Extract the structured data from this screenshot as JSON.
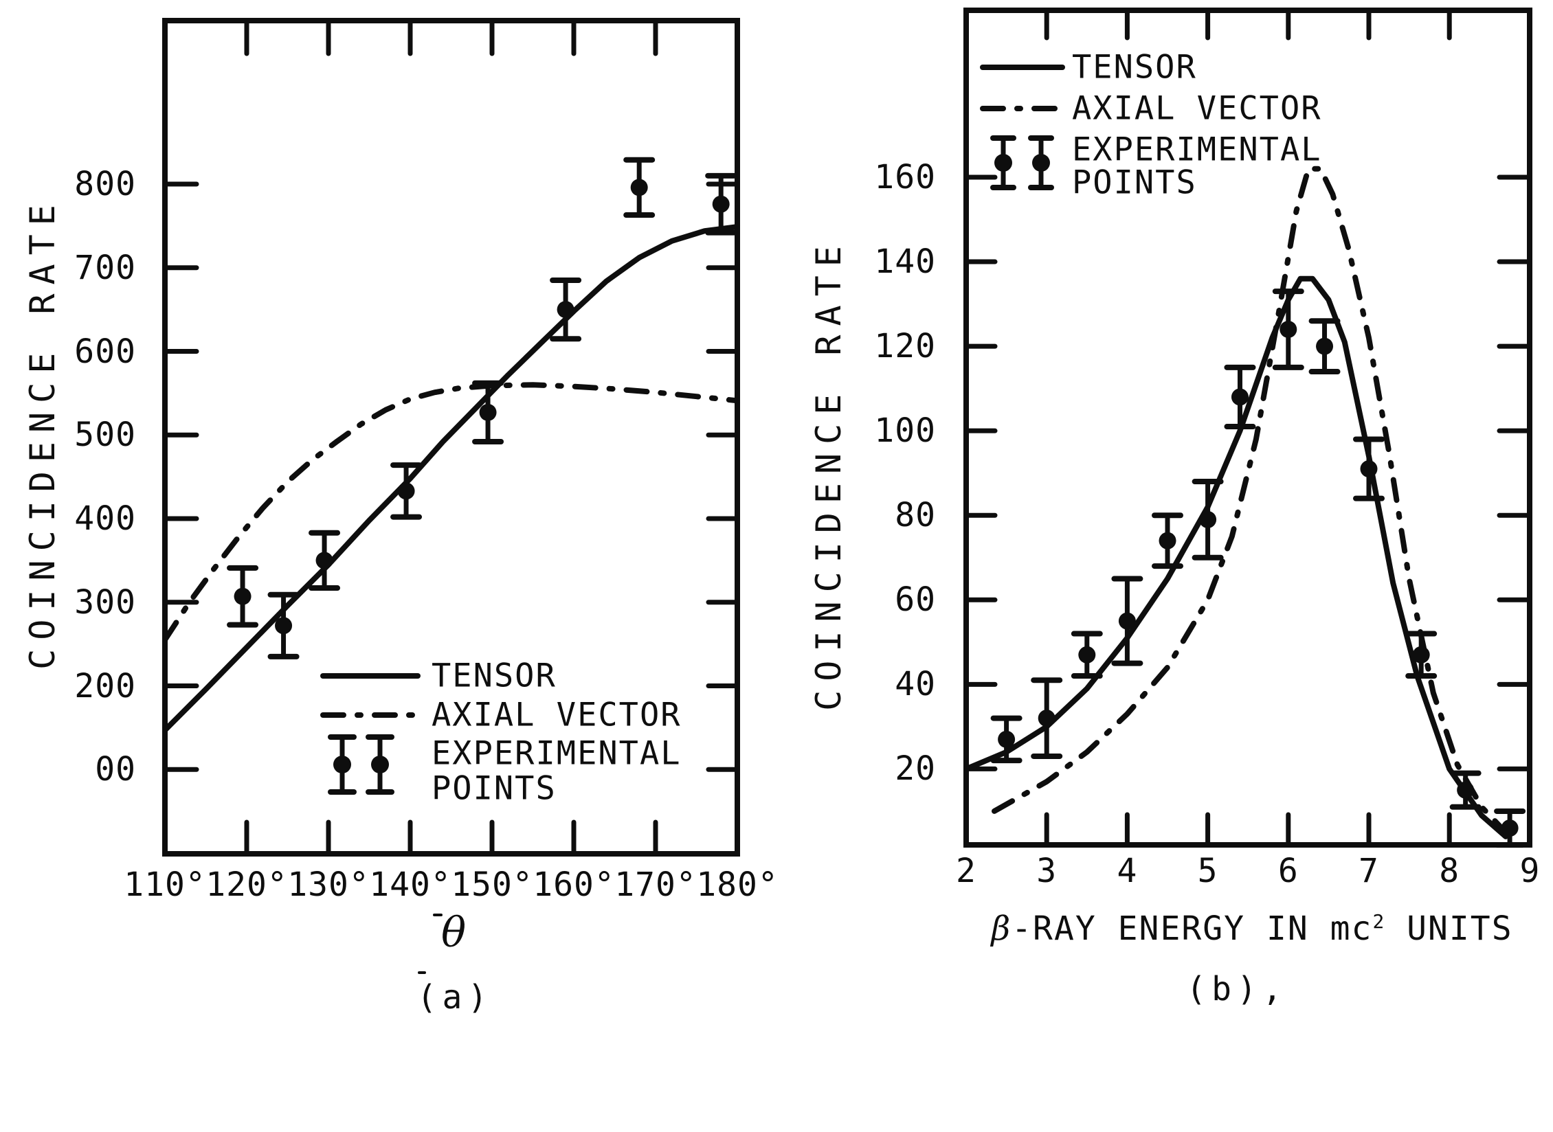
{
  "figure": {
    "background": "#ffffff",
    "ink": "#0e0e0e"
  },
  "panel_a": {
    "ylabel": "COINCIDENCE RATE",
    "xlabel": "θ",
    "caption": "(a)",
    "legend": {
      "tensor": "TENSOR",
      "axial": "AXIAL VECTOR",
      "experimental_line1": "EXPERIMENTAL",
      "experimental_line2": "POINTS"
    }
  },
  "panel_b": {
    "ylabel": "COINCIDENCE RATE",
    "xlabel_beta": "β",
    "xlabel_prefix": "-RAY ENERGY IN mc",
    "xlabel_sup": "2",
    "xlabel_suffix": " UNITS",
    "caption": "(b),",
    "legend": {
      "tensor": "TENSOR",
      "axial": "AXIAL VECTOR",
      "experimental_line1": "EXPERIMENTAL",
      "experimental_line2": "POINTS"
    }
  },
  "chart_data": [
    {
      "type": "line",
      "panel": "a",
      "title": "",
      "xlabel": "θ",
      "ylabel": "COINCIDENCE RATE",
      "xlim": [
        110,
        180
      ],
      "ylim": [
        0,
        1000
      ],
      "grid": false,
      "legend_position": "inside lower right",
      "x_tick_labels": [
        {
          "v": 110,
          "label": "110°"
        },
        {
          "v": 120,
          "label": "120°"
        },
        {
          "v": 130,
          "label": "130°"
        },
        {
          "v": 140,
          "label": "140°"
        },
        {
          "v": 150,
          "label": "150°"
        },
        {
          "v": 160,
          "label": "160°"
        },
        {
          "v": 170,
          "label": "170°"
        },
        {
          "v": 180,
          "label": "180°"
        }
      ],
      "x_tick_marks": [
        120,
        130,
        140,
        150,
        160,
        170
      ],
      "y_tick_labels": [
        {
          "v": 800,
          "label": "800"
        },
        {
          "v": 700,
          "label": "700"
        },
        {
          "v": 600,
          "label": "600"
        },
        {
          "v": 500,
          "label": "500"
        },
        {
          "v": 400,
          "label": "400"
        },
        {
          "v": 300,
          "label": "300"
        },
        {
          "v": 200,
          "label": "200"
        },
        {
          "v": 100,
          "label": "00"
        }
      ],
      "series": [
        {
          "name": "TENSOR",
          "style": "solid",
          "points": [
            [
              110,
              147
            ],
            [
              115,
              196
            ],
            [
              120,
              246
            ],
            [
              125,
              296
            ],
            [
              130,
              345
            ],
            [
              135,
              398
            ],
            [
              140,
              448
            ],
            [
              144,
              492
            ],
            [
              148,
              532
            ],
            [
              152,
              572
            ],
            [
              156,
              610
            ],
            [
              160,
              648
            ],
            [
              164,
              684
            ],
            [
              168,
              712
            ],
            [
              172,
              732
            ],
            [
              176,
              744
            ],
            [
              180,
              749
            ]
          ]
        },
        {
          "name": "AXIAL VECTOR",
          "style": "dashdot",
          "points": [
            [
              110,
              255
            ],
            [
              113,
              300
            ],
            [
              116,
              340
            ],
            [
              119,
              378
            ],
            [
              122,
              413
            ],
            [
              125,
              444
            ],
            [
              128,
              470
            ],
            [
              131,
              492
            ],
            [
              134,
              513
            ],
            [
              137,
              530
            ],
            [
              140,
              543
            ],
            [
              143,
              551
            ],
            [
              146,
              556
            ],
            [
              150,
              559
            ],
            [
              155,
              560
            ],
            [
              160,
              558
            ],
            [
              165,
              555
            ],
            [
              170,
              551
            ],
            [
              175,
              546
            ],
            [
              180,
              541
            ]
          ]
        },
        {
          "name": "EXPERIMENTAL POINTS",
          "style": "scatter",
          "points": [
            {
              "x": 119.5,
              "y": 307,
              "err": 34
            },
            {
              "x": 124.5,
              "y": 272,
              "err": 37
            },
            {
              "x": 129.5,
              "y": 350,
              "err": 33
            },
            {
              "x": 139.5,
              "y": 433,
              "err": 31
            },
            {
              "x": 149.5,
              "y": 527,
              "err": 35
            },
            {
              "x": 159.0,
              "y": 650,
              "err": 35
            },
            {
              "x": 168.0,
              "y": 796,
              "err": 33
            },
            {
              "x": 178.0,
              "y": 776,
              "err": 34
            }
          ]
        }
      ]
    },
    {
      "type": "line",
      "panel": "b",
      "title": "",
      "xlabel": "β-RAY ENERGY IN mc2 UNITS",
      "ylabel": "COINCIDENCE RATE",
      "xlim": [
        2,
        9
      ],
      "ylim": [
        0,
        175
      ],
      "grid": false,
      "legend_position": "inside upper left",
      "x_tick_labels": [
        {
          "v": 2,
          "label": "2"
        },
        {
          "v": 3,
          "label": "3"
        },
        {
          "v": 4,
          "label": "4"
        },
        {
          "v": 5,
          "label": "5"
        },
        {
          "v": 6,
          "label": "6"
        },
        {
          "v": 7,
          "label": "7"
        },
        {
          "v": 8,
          "label": "8"
        },
        {
          "v": 9,
          "label": "9"
        }
      ],
      "x_tick_marks": [
        3,
        4,
        5,
        6,
        7,
        8
      ],
      "y_tick_labels": [
        {
          "v": 160,
          "label": "160"
        },
        {
          "v": 140,
          "label": "140"
        },
        {
          "v": 120,
          "label": "120"
        },
        {
          "v": 100,
          "label": "100"
        },
        {
          "v": 80,
          "label": "80"
        },
        {
          "v": 60,
          "label": "60"
        },
        {
          "v": 40,
          "label": "40"
        },
        {
          "v": 20,
          "label": "20"
        }
      ],
      "series": [
        {
          "name": "TENSOR",
          "style": "solid",
          "points": [
            [
              2,
              20
            ],
            [
              2.5,
              24
            ],
            [
              3,
              30
            ],
            [
              3.5,
              39
            ],
            [
              4,
              51
            ],
            [
              4.5,
              65
            ],
            [
              5,
              82
            ],
            [
              5.4,
              100
            ],
            [
              5.8,
              122
            ],
            [
              6.0,
              131
            ],
            [
              6.15,
              136
            ],
            [
              6.3,
              136
            ],
            [
              6.5,
              131
            ],
            [
              6.7,
              121
            ],
            [
              7,
              94
            ],
            [
              7.3,
              64
            ],
            [
              7.6,
              42
            ],
            [
              8,
              20
            ],
            [
              8.4,
              9
            ],
            [
              8.7,
              4
            ]
          ]
        },
        {
          "name": "AXIAL VECTOR",
          "style": "dashdot",
          "points": [
            [
              2.35,
              10
            ],
            [
              3,
              17
            ],
            [
              3.5,
              24
            ],
            [
              4,
              33
            ],
            [
              4.5,
              44
            ],
            [
              5,
              60
            ],
            [
              5.3,
              75
            ],
            [
              5.6,
              98
            ],
            [
              5.9,
              130
            ],
            [
              6.1,
              152
            ],
            [
              6.25,
              162
            ],
            [
              6.4,
              162
            ],
            [
              6.55,
              156
            ],
            [
              6.75,
              143
            ],
            [
              7,
              122
            ],
            [
              7.25,
              95
            ],
            [
              7.5,
              65
            ],
            [
              7.8,
              38
            ],
            [
              8.1,
              21
            ],
            [
              8.4,
              11
            ],
            [
              8.7,
              5
            ]
          ]
        },
        {
          "name": "EXPERIMENTAL POINTS",
          "style": "scatter",
          "points": [
            {
              "x": 2.5,
              "y": 27,
              "err": 5
            },
            {
              "x": 3.0,
              "y": 32,
              "err": 9
            },
            {
              "x": 3.5,
              "y": 47,
              "err": 5
            },
            {
              "x": 4.0,
              "y": 55,
              "err": 10
            },
            {
              "x": 4.5,
              "y": 74,
              "err": 6
            },
            {
              "x": 5.0,
              "y": 79,
              "err": 9
            },
            {
              "x": 5.4,
              "y": 108,
              "err": 7
            },
            {
              "x": 6.0,
              "y": 124,
              "err": 9
            },
            {
              "x": 6.45,
              "y": 120,
              "err": 6
            },
            {
              "x": 7.0,
              "y": 91,
              "err": 7
            },
            {
              "x": 7.65,
              "y": 47,
              "err": 5
            },
            {
              "x": 8.2,
              "y": 15,
              "err": 4
            },
            {
              "x": 8.75,
              "y": 6,
              "err": 4
            }
          ]
        }
      ]
    }
  ]
}
